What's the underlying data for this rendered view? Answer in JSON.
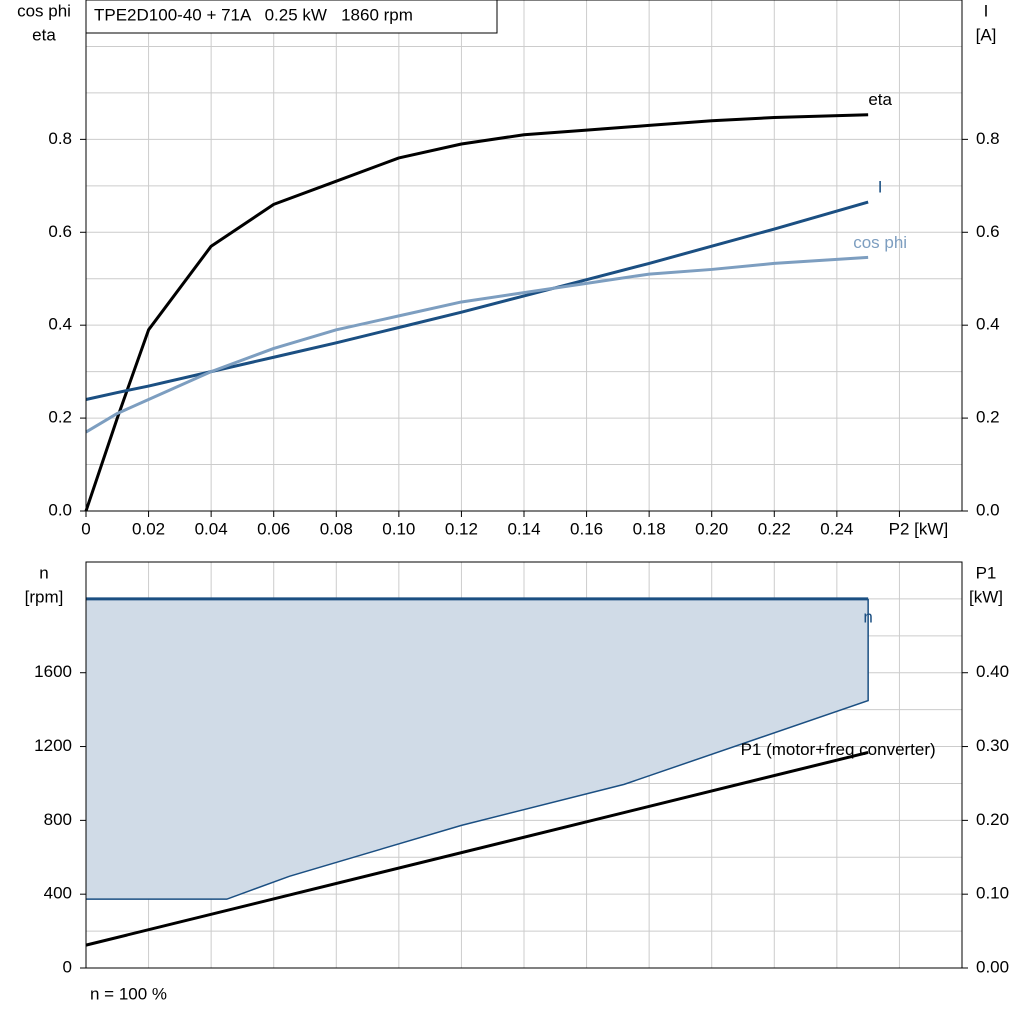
{
  "chart_data": [
    {
      "type": "line",
      "title": "TPE2D100-40 + 71A   0.25 kW   1860 rpm",
      "y_label": [
        "cos phi",
        "eta"
      ],
      "y2_label": [
        "I",
        "[A]"
      ],
      "x": [
        0,
        0.01,
        0.02,
        0.04,
        0.06,
        0.08,
        0.1,
        0.12,
        0.14,
        0.16,
        0.18,
        0.2,
        0.22,
        0.25
      ],
      "xlim": [
        0,
        0.28
      ],
      "xticks": [
        0,
        0.02,
        0.04,
        0.06,
        0.08,
        0.1,
        0.12,
        0.14,
        0.16,
        0.18,
        0.2,
        0.22,
        0.24,
        {
          "value": 0.26,
          "label": "P2 [kW]"
        }
      ],
      "xtick_labels": [
        "0",
        "0.02",
        "0.04",
        "0.06",
        "0.08",
        "0.10",
        "0.12",
        "0.14",
        "0.16",
        "0.18",
        "0.20",
        "0.22",
        "0.24"
      ],
      "ylim": [
        0,
        1.1
      ],
      "yticks": [
        {
          "value": 0,
          "label": "0.0"
        },
        0.2,
        0.4,
        0.6,
        0.8
      ],
      "ygrid": [
        0.1,
        0.2,
        0.3,
        0.4,
        0.5,
        0.6,
        0.7,
        0.8,
        0.9,
        1.0
      ],
      "y2lim": [
        0,
        1.1
      ],
      "y2ticks": [
        {
          "value": 0,
          "label": "0.0"
        },
        0.2,
        0.4,
        0.6,
        0.8
      ],
      "grid": true,
      "series": [
        {
          "name": "eta",
          "color": "#000000",
          "values": [
            0,
            0.2,
            0.39,
            0.57,
            0.66,
            0.71,
            0.76,
            0.79,
            0.81,
            0.82,
            0.83,
            0.84,
            0.847,
            0.853
          ]
        },
        {
          "name": "I",
          "color": "#1b4f82",
          "axis": "y2",
          "values": [
            0.24,
            0.255,
            0.269,
            0.3,
            0.331,
            0.362,
            0.395,
            0.428,
            0.463,
            0.498,
            0.533,
            0.57,
            0.607,
            0.665
          ]
        },
        {
          "name": "cos phi",
          "color": "#7d9ec0",
          "values": [
            0.17,
            0.21,
            0.24,
            0.3,
            0.35,
            0.39,
            0.42,
            0.45,
            0.47,
            0.49,
            0.51,
            0.52,
            0.533,
            0.546
          ]
        }
      ]
    },
    {
      "type": "area",
      "y_label": [
        "n",
        "[rpm]"
      ],
      "y2_label": [
        "P1",
        "[kW]"
      ],
      "xlim": [
        0,
        0.28
      ],
      "xticks": [
        0.02,
        0.04,
        0.06,
        0.08,
        0.1,
        0.12,
        0.14,
        0.16,
        0.18,
        0.2,
        0.22,
        0.24,
        0.26
      ],
      "ylim": [
        0,
        2200
      ],
      "yticks": [
        0,
        400,
        800,
        1200,
        1600
      ],
      "ygrid": [
        200,
        400,
        600,
        800,
        1000,
        1200,
        1400,
        1600,
        1800,
        2000
      ],
      "y2lim": [
        0,
        0.55
      ],
      "y2ticks": [
        {
          "value": 0,
          "label": "0.00"
        },
        {
          "value": 0.1,
          "label": "0.10"
        },
        {
          "value": 0.2,
          "label": "0.20"
        },
        {
          "value": 0.3,
          "label": "0.30"
        },
        {
          "value": 0.4,
          "label": "0.40"
        }
      ],
      "grid": true,
      "note": "n = 100 %",
      "series": [
        {
          "name": "n",
          "color": "#1b4f82",
          "fill": "#d0dbe7",
          "x": [
            0,
            0.045,
            0.065,
            0.12,
            0.172,
            0.25
          ],
          "values": [
            2000,
            2000,
            2000,
            2000,
            2000,
            2000
          ],
          "lower": [
            373,
            373,
            497,
            773,
            995,
            1449
          ]
        },
        {
          "name": "P1 (motor+freq converter)",
          "color": "#000000",
          "axis": "y2",
          "x": [
            0,
            0.25
          ],
          "values": [
            0.031,
            0.292
          ]
        }
      ]
    }
  ]
}
